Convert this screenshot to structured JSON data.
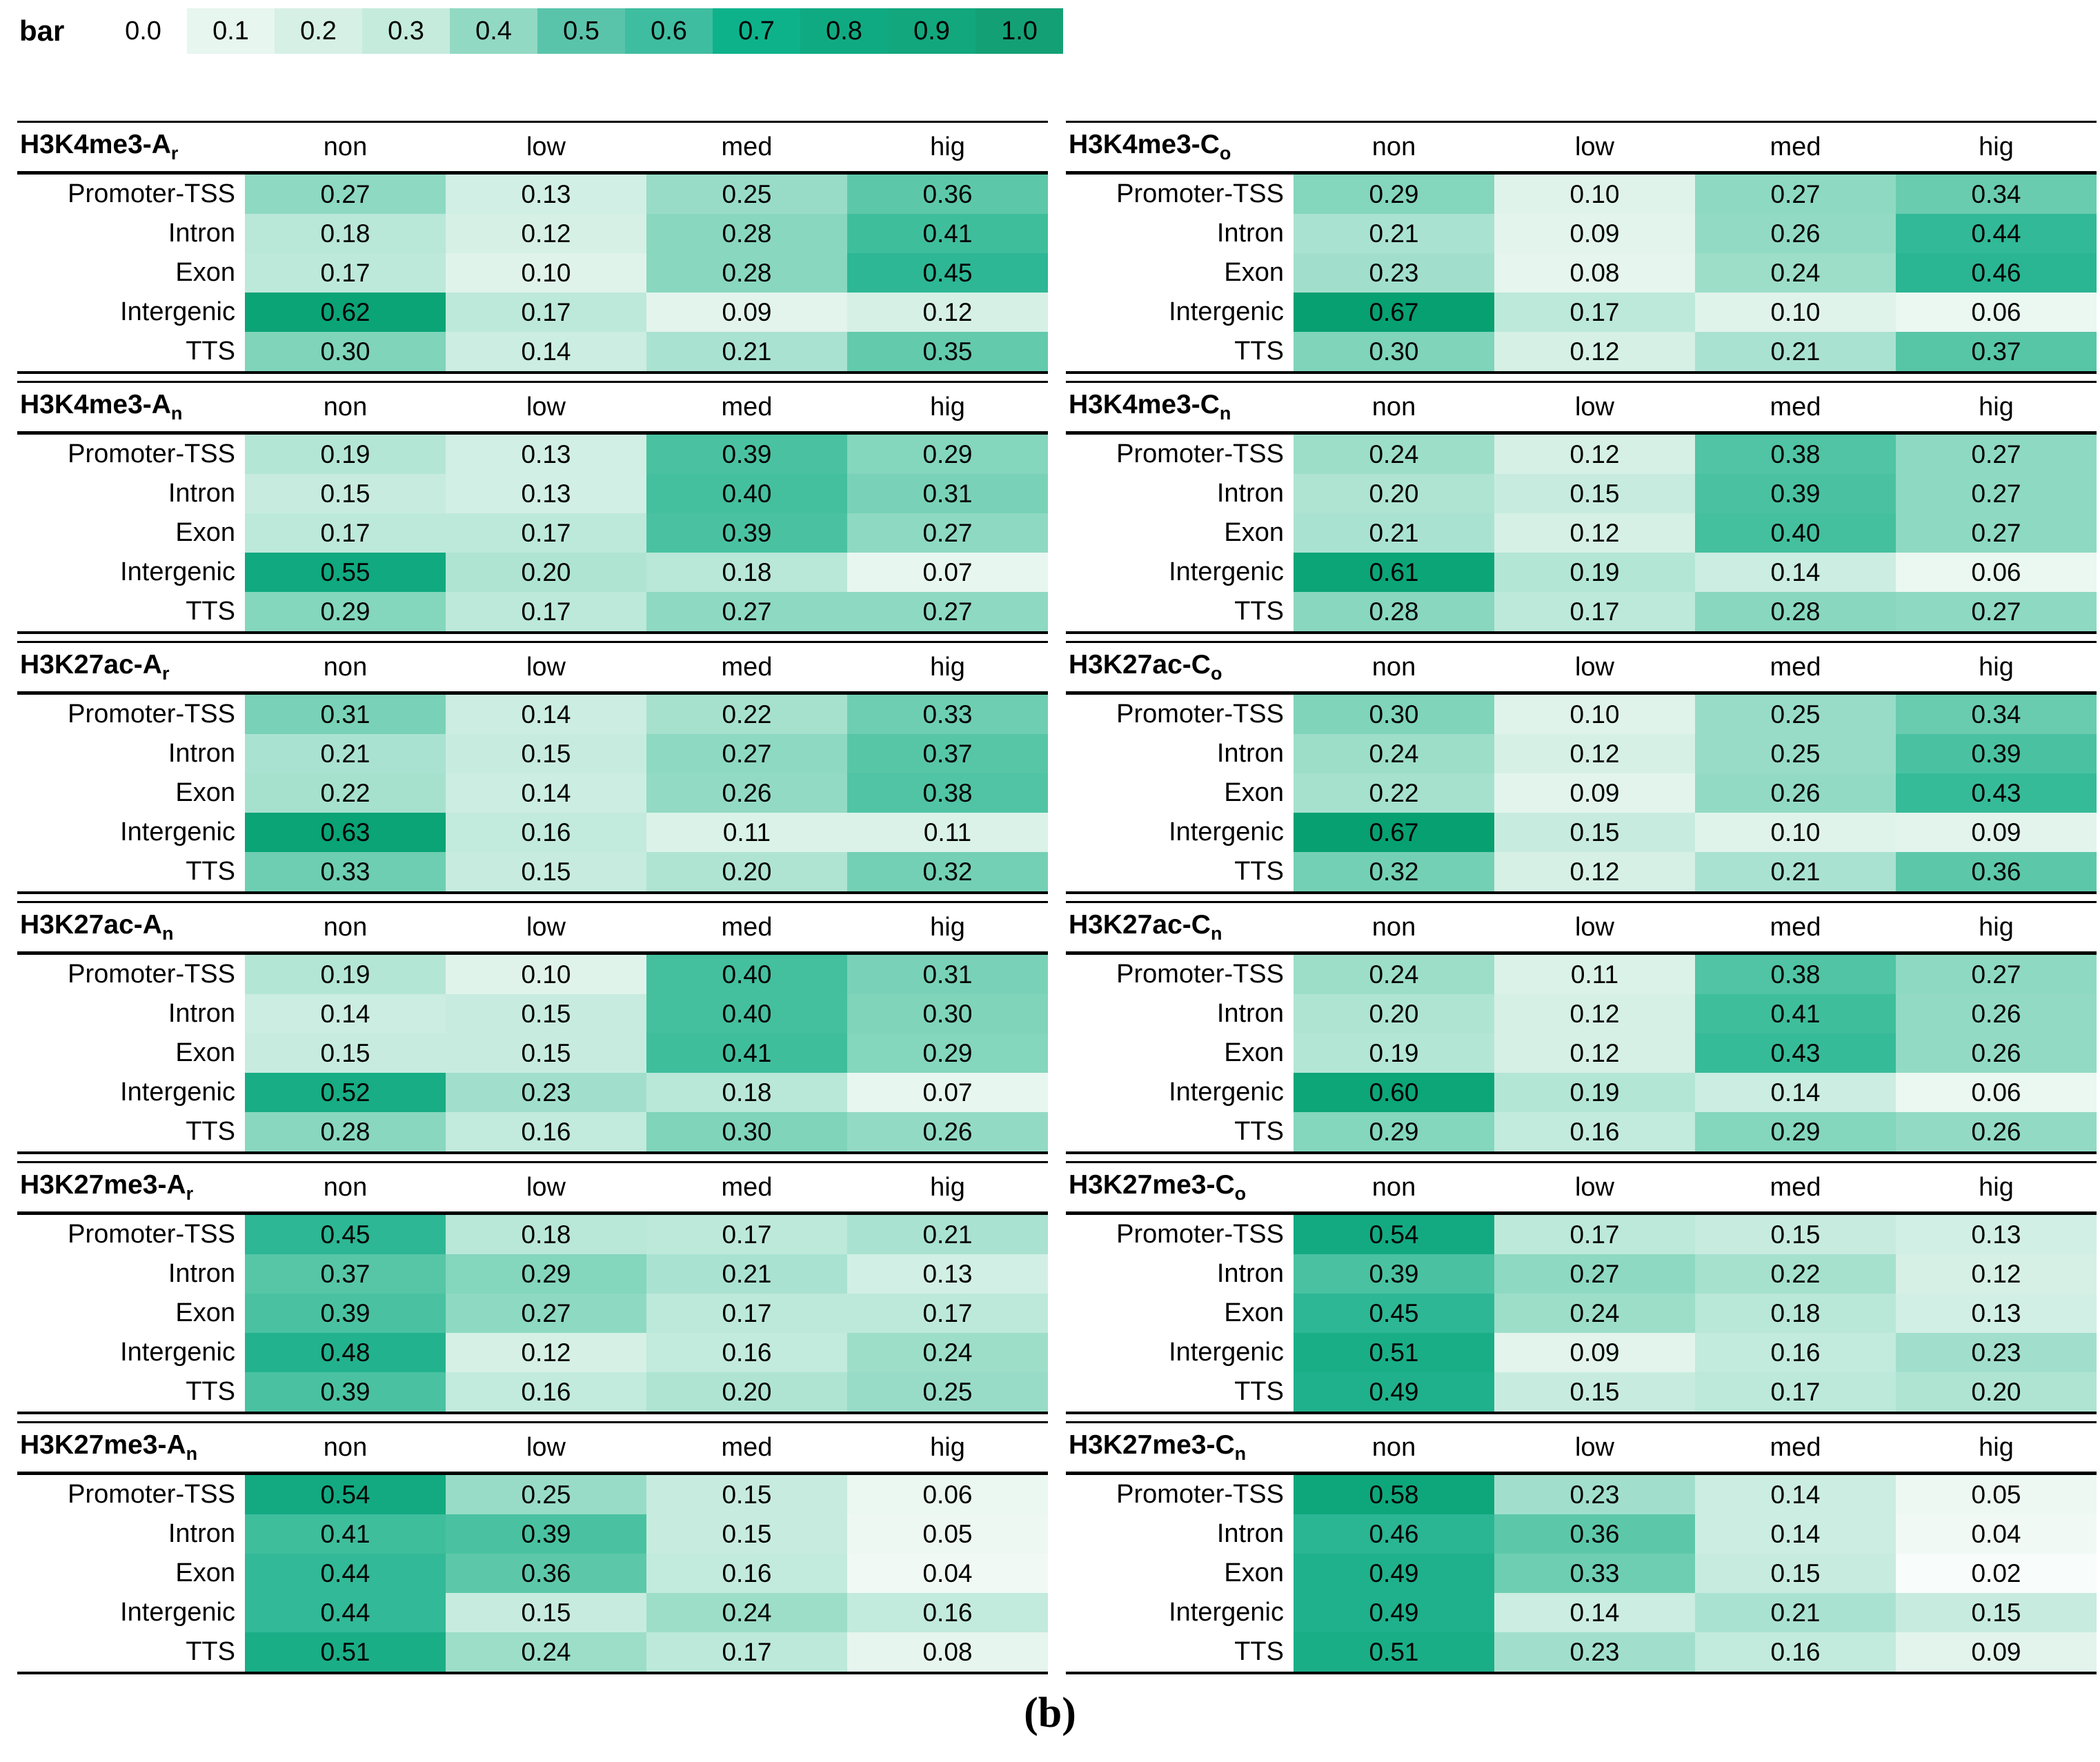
{
  "caption": "(b)",
  "chart_data": {
    "type": "heatmap",
    "caption": "(b)",
    "colorbar": {
      "label": "bar",
      "ticks": [
        "0.0",
        "0.1",
        "0.2",
        "0.3",
        "0.4",
        "0.5",
        "0.6",
        "0.7",
        "0.8",
        "0.9",
        "1.0"
      ],
      "swatch_colors": [
        "#ffffff",
        "#e7f6ef",
        "#d7f0e6",
        "#c5ebdd",
        "#92d9c3",
        "#5ac4ab",
        "#3fbda0",
        "#0db28b",
        "#10aa82",
        "#12a77d",
        "#14a075"
      ]
    },
    "colormap_anchors": [
      [
        0.0,
        "#ffffff"
      ],
      [
        0.05,
        "#eef8f3"
      ],
      [
        0.1,
        "#e0f3eb"
      ],
      [
        0.15,
        "#c7ecdf"
      ],
      [
        0.2,
        "#afe4d3"
      ],
      [
        0.25,
        "#98dcc7"
      ],
      [
        0.3,
        "#7fd4ba"
      ],
      [
        0.35,
        "#63caac"
      ],
      [
        0.4,
        "#44c09e"
      ],
      [
        0.45,
        "#2db795"
      ],
      [
        0.5,
        "#1caf89"
      ],
      [
        0.55,
        "#11a980"
      ],
      [
        0.6,
        "#0ca679"
      ],
      [
        0.7,
        "#059e6e"
      ],
      [
        1.0,
        "#008f63"
      ]
    ],
    "col_labels": [
      "non",
      "low",
      "med",
      "hig"
    ],
    "row_labels": [
      "Promoter-TSS",
      "Intron",
      "Exon",
      "Intergenic",
      "TTS"
    ],
    "value_range": [
      0,
      1
    ],
    "panels": [
      {
        "title_base": "H3K4me3-A",
        "title_sub": "r",
        "values": [
          [
            0.27,
            0.13,
            0.25,
            0.36
          ],
          [
            0.18,
            0.12,
            0.28,
            0.41
          ],
          [
            0.17,
            0.1,
            0.28,
            0.45
          ],
          [
            0.62,
            0.17,
            0.09,
            0.12
          ],
          [
            0.3,
            0.14,
            0.21,
            0.35
          ]
        ]
      },
      {
        "title_base": "H3K4me3-C",
        "title_sub": "o",
        "values": [
          [
            0.29,
            0.1,
            0.27,
            0.34
          ],
          [
            0.21,
            0.09,
            0.26,
            0.44
          ],
          [
            0.23,
            0.08,
            0.24,
            0.46
          ],
          [
            0.67,
            0.17,
            0.1,
            0.06
          ],
          [
            0.3,
            0.12,
            0.21,
            0.37
          ]
        ]
      },
      {
        "title_base": "H3K4me3-A",
        "title_sub": "n",
        "values": [
          [
            0.19,
            0.13,
            0.39,
            0.29
          ],
          [
            0.15,
            0.13,
            0.4,
            0.31
          ],
          [
            0.17,
            0.17,
            0.39,
            0.27
          ],
          [
            0.55,
            0.2,
            0.18,
            0.07
          ],
          [
            0.29,
            0.17,
            0.27,
            0.27
          ]
        ]
      },
      {
        "title_base": "H3K4me3-C",
        "title_sub": "n",
        "values": [
          [
            0.24,
            0.12,
            0.38,
            0.27
          ],
          [
            0.2,
            0.15,
            0.39,
            0.27
          ],
          [
            0.21,
            0.12,
            0.4,
            0.27
          ],
          [
            0.61,
            0.19,
            0.14,
            0.06
          ],
          [
            0.28,
            0.17,
            0.28,
            0.27
          ]
        ]
      },
      {
        "title_base": "H3K27ac-A",
        "title_sub": "r",
        "values": [
          [
            0.31,
            0.14,
            0.22,
            0.33
          ],
          [
            0.21,
            0.15,
            0.27,
            0.37
          ],
          [
            0.22,
            0.14,
            0.26,
            0.38
          ],
          [
            0.63,
            0.16,
            0.11,
            0.11
          ],
          [
            0.33,
            0.15,
            0.2,
            0.32
          ]
        ]
      },
      {
        "title_base": "H3K27ac-C",
        "title_sub": "o",
        "values": [
          [
            0.3,
            0.1,
            0.25,
            0.34
          ],
          [
            0.24,
            0.12,
            0.25,
            0.39
          ],
          [
            0.22,
            0.09,
            0.26,
            0.43
          ],
          [
            0.67,
            0.15,
            0.1,
            0.09
          ],
          [
            0.32,
            0.12,
            0.21,
            0.36
          ]
        ]
      },
      {
        "title_base": "H3K27ac-A",
        "title_sub": "n",
        "values": [
          [
            0.19,
            0.1,
            0.4,
            0.31
          ],
          [
            0.14,
            0.15,
            0.4,
            0.3
          ],
          [
            0.15,
            0.15,
            0.41,
            0.29
          ],
          [
            0.52,
            0.23,
            0.18,
            0.07
          ],
          [
            0.28,
            0.16,
            0.3,
            0.26
          ]
        ]
      },
      {
        "title_base": "H3K27ac-C",
        "title_sub": "n",
        "values": [
          [
            0.24,
            0.11,
            0.38,
            0.27
          ],
          [
            0.2,
            0.12,
            0.41,
            0.26
          ],
          [
            0.19,
            0.12,
            0.43,
            0.26
          ],
          [
            0.6,
            0.19,
            0.14,
            0.06
          ],
          [
            0.29,
            0.16,
            0.29,
            0.26
          ]
        ]
      },
      {
        "title_base": "H3K27me3-A",
        "title_sub": "r",
        "values": [
          [
            0.45,
            0.18,
            0.17,
            0.21
          ],
          [
            0.37,
            0.29,
            0.21,
            0.13
          ],
          [
            0.39,
            0.27,
            0.17,
            0.17
          ],
          [
            0.48,
            0.12,
            0.16,
            0.24
          ],
          [
            0.39,
            0.16,
            0.2,
            0.25
          ]
        ]
      },
      {
        "title_base": "H3K27me3-C",
        "title_sub": "o",
        "values": [
          [
            0.54,
            0.17,
            0.15,
            0.13
          ],
          [
            0.39,
            0.27,
            0.22,
            0.12
          ],
          [
            0.45,
            0.24,
            0.18,
            0.13
          ],
          [
            0.51,
            0.09,
            0.16,
            0.23
          ],
          [
            0.49,
            0.15,
            0.17,
            0.2
          ]
        ]
      },
      {
        "title_base": "H3K27me3-A",
        "title_sub": "n",
        "values": [
          [
            0.54,
            0.25,
            0.15,
            0.06
          ],
          [
            0.41,
            0.39,
            0.15,
            0.05
          ],
          [
            0.44,
            0.36,
            0.16,
            0.04
          ],
          [
            0.44,
            0.15,
            0.24,
            0.16
          ],
          [
            0.51,
            0.24,
            0.17,
            0.08
          ]
        ]
      },
      {
        "title_base": "H3K27me3-C",
        "title_sub": "n",
        "values": [
          [
            0.58,
            0.23,
            0.14,
            0.05
          ],
          [
            0.46,
            0.36,
            0.14,
            0.04
          ],
          [
            0.49,
            0.33,
            0.15,
            0.02
          ],
          [
            0.49,
            0.14,
            0.21,
            0.15
          ],
          [
            0.51,
            0.23,
            0.16,
            0.09
          ]
        ]
      }
    ]
  }
}
